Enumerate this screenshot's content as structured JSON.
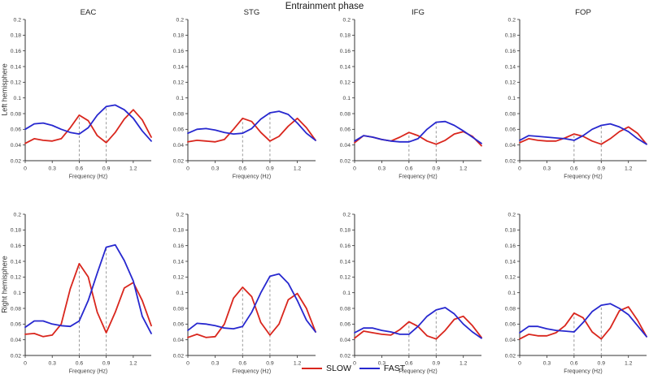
{
  "figure": {
    "title": "Entrainment phase",
    "row_labels": [
      "Left hemisphere",
      "Right hemisphere"
    ],
    "column_titles": [
      "EAC",
      "STG",
      "IFG",
      "FOP"
    ],
    "xlabel": "Frequency (Hz)",
    "legend": [
      {
        "label": "SLOW",
        "color": "#d9261d"
      },
      {
        "label": "FAST",
        "color": "#2728cf"
      }
    ],
    "colors": {
      "slow": "#d9261d",
      "fast": "#2728cf",
      "axis": "#333333",
      "tick_text": "#3d3d3d",
      "dashed_line": "#8f8f8f",
      "background": "#ffffff"
    }
  },
  "chart_data": {
    "type": "line",
    "title": "Entrainment phase",
    "xlabel": "Frequency (Hz)",
    "ylabel": "",
    "layout": "2 rows (Left/Right hemisphere) x 4 columns (EAC, STG, IFG, FOP); legend bottom center; no grid",
    "grid": false,
    "legend_position": "bottom center",
    "x": [
      0,
      0.1,
      0.2,
      0.3,
      0.4,
      0.5,
      0.6,
      0.7,
      0.8,
      0.9,
      1.0,
      1.1,
      1.2,
      1.3,
      1.4
    ],
    "xlim": [
      0,
      1.4
    ],
    "ylim": [
      0.02,
      0.2
    ],
    "xticks": [
      0,
      0.3,
      0.6,
      0.9,
      1.2
    ],
    "yticks": [
      0.02,
      0.04,
      0.06,
      0.08,
      0.1,
      0.12,
      0.14,
      0.16,
      0.18,
      0.2
    ],
    "dashed_marker_frequencies_hz": [
      0.6,
      0.9
    ],
    "subplots": [
      {
        "id": "eac-left",
        "row": "Left hemisphere",
        "column": "EAC",
        "series": [
          {
            "name": "SLOW",
            "color": "#d9261d",
            "values": [
              0.042,
              0.048,
              0.046,
              0.045,
              0.048,
              0.062,
              0.078,
              0.071,
              0.052,
              0.043,
              0.056,
              0.073,
              0.085,
              0.072,
              0.05
            ]
          },
          {
            "name": "FAST",
            "color": "#2728cf",
            "values": [
              0.06,
              0.067,
              0.068,
              0.065,
              0.06,
              0.056,
              0.054,
              0.062,
              0.078,
              0.089,
              0.091,
              0.085,
              0.074,
              0.058,
              0.045
            ]
          }
        ]
      },
      {
        "id": "stg-left",
        "row": "Left hemisphere",
        "column": "STG",
        "series": [
          {
            "name": "SLOW",
            "color": "#d9261d",
            "values": [
              0.044,
              0.046,
              0.045,
              0.044,
              0.047,
              0.06,
              0.074,
              0.07,
              0.056,
              0.045,
              0.051,
              0.064,
              0.074,
              0.062,
              0.046
            ]
          },
          {
            "name": "FAST",
            "color": "#2728cf",
            "values": [
              0.055,
              0.06,
              0.061,
              0.059,
              0.056,
              0.054,
              0.055,
              0.061,
              0.073,
              0.081,
              0.083,
              0.079,
              0.068,
              0.055,
              0.046
            ]
          }
        ]
      },
      {
        "id": "ifg-left",
        "row": "Left hemisphere",
        "column": "IFG",
        "series": [
          {
            "name": "SLOW",
            "color": "#d9261d",
            "values": [
              0.043,
              0.052,
              0.05,
              0.047,
              0.045,
              0.05,
              0.056,
              0.052,
              0.045,
              0.041,
              0.046,
              0.054,
              0.057,
              0.051,
              0.039
            ]
          },
          {
            "name": "FAST",
            "color": "#2728cf",
            "values": [
              0.045,
              0.052,
              0.05,
              0.047,
              0.045,
              0.044,
              0.044,
              0.048,
              0.06,
              0.069,
              0.07,
              0.065,
              0.058,
              0.05,
              0.042
            ]
          }
        ]
      },
      {
        "id": "fop-left",
        "row": "Left hemisphere",
        "column": "FOP",
        "series": [
          {
            "name": "SLOW",
            "color": "#d9261d",
            "values": [
              0.043,
              0.048,
              0.046,
              0.045,
              0.045,
              0.049,
              0.054,
              0.051,
              0.045,
              0.041,
              0.048,
              0.057,
              0.063,
              0.055,
              0.041
            ]
          },
          {
            "name": "FAST",
            "color": "#2728cf",
            "values": [
              0.046,
              0.052,
              0.051,
              0.05,
              0.049,
              0.048,
              0.046,
              0.052,
              0.06,
              0.065,
              0.067,
              0.063,
              0.057,
              0.048,
              0.041
            ]
          }
        ]
      },
      {
        "id": "eac-right",
        "row": "Right hemisphere",
        "column": "EAC",
        "series": [
          {
            "name": "SLOW",
            "color": "#d9261d",
            "values": [
              0.047,
              0.048,
              0.044,
              0.046,
              0.06,
              0.105,
              0.137,
              0.12,
              0.075,
              0.049,
              0.075,
              0.106,
              0.113,
              0.09,
              0.058
            ]
          },
          {
            "name": "FAST",
            "color": "#2728cf",
            "values": [
              0.056,
              0.064,
              0.064,
              0.06,
              0.058,
              0.057,
              0.064,
              0.09,
              0.125,
              0.158,
              0.161,
              0.141,
              0.115,
              0.07,
              0.048
            ]
          }
        ]
      },
      {
        "id": "stg-right",
        "row": "Right hemisphere",
        "column": "STG",
        "series": [
          {
            "name": "SLOW",
            "color": "#d9261d",
            "values": [
              0.043,
              0.047,
              0.043,
              0.044,
              0.06,
              0.093,
              0.107,
              0.095,
              0.062,
              0.046,
              0.06,
              0.091,
              0.099,
              0.08,
              0.05
            ]
          },
          {
            "name": "FAST",
            "color": "#2728cf",
            "values": [
              0.052,
              0.061,
              0.06,
              0.058,
              0.055,
              0.054,
              0.057,
              0.075,
              0.1,
              0.121,
              0.124,
              0.112,
              0.09,
              0.065,
              0.05
            ]
          }
        ]
      },
      {
        "id": "ifg-right",
        "row": "Right hemisphere",
        "column": "IFG",
        "series": [
          {
            "name": "SLOW",
            "color": "#d9261d",
            "values": [
              0.042,
              0.051,
              0.049,
              0.047,
              0.046,
              0.053,
              0.063,
              0.057,
              0.045,
              0.041,
              0.052,
              0.066,
              0.07,
              0.058,
              0.043
            ]
          },
          {
            "name": "FAST",
            "color": "#2728cf",
            "values": [
              0.049,
              0.055,
              0.055,
              0.052,
              0.05,
              0.047,
              0.047,
              0.057,
              0.07,
              0.078,
              0.081,
              0.073,
              0.06,
              0.05,
              0.042
            ]
          }
        ]
      },
      {
        "id": "fop-right",
        "row": "Right hemisphere",
        "column": "FOP",
        "series": [
          {
            "name": "SLOW",
            "color": "#d9261d",
            "values": [
              0.041,
              0.047,
              0.045,
              0.045,
              0.049,
              0.058,
              0.074,
              0.068,
              0.05,
              0.041,
              0.055,
              0.077,
              0.082,
              0.065,
              0.044
            ]
          },
          {
            "name": "FAST",
            "color": "#2728cf",
            "values": [
              0.049,
              0.057,
              0.057,
              0.054,
              0.052,
              0.051,
              0.05,
              0.062,
              0.076,
              0.084,
              0.086,
              0.08,
              0.072,
              0.058,
              0.044
            ]
          }
        ]
      }
    ]
  }
}
